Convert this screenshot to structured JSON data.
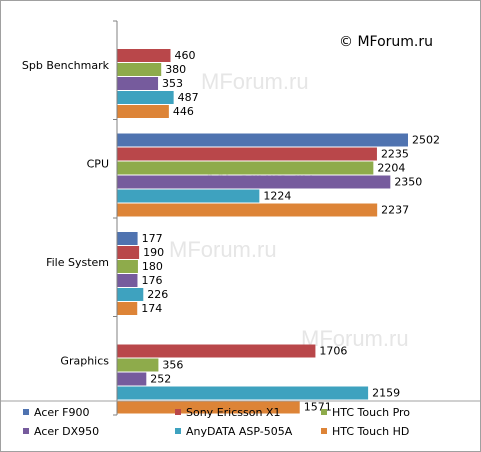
{
  "copyright": "© MForum.ru",
  "watermark": "MForum.ru",
  "chart_data": {
    "type": "bar",
    "orientation": "horizontal",
    "title": "",
    "xlabel": "",
    "ylabel": "",
    "xlim": [
      0,
      2500
    ],
    "grid": false,
    "legend_position": "bottom",
    "categories": [
      "Spb Benchmark",
      "CPU",
      "File System",
      "Graphics"
    ],
    "series": [
      {
        "name": "Acer F900",
        "color": "#4f73b0",
        "values": [
          null,
          2502,
          177,
          null
        ]
      },
      {
        "name": "Sony Ericsson X1",
        "color": "#b9474a",
        "values": [
          460,
          2235,
          190,
          1706
        ]
      },
      {
        "name": "HTC Touch Pro",
        "color": "#8eab4b",
        "values": [
          380,
          2204,
          180,
          356
        ]
      },
      {
        "name": "Acer DX950",
        "color": "#765b9d",
        "values": [
          353,
          2350,
          176,
          252
        ]
      },
      {
        "name": "AnyDATA ASP-505A",
        "color": "#3ea2bf",
        "values": [
          487,
          1224,
          226,
          2159
        ]
      },
      {
        "name": "HTC Touch HD",
        "color": "#dd8437",
        "values": [
          446,
          2237,
          174,
          1571
        ]
      }
    ]
  }
}
